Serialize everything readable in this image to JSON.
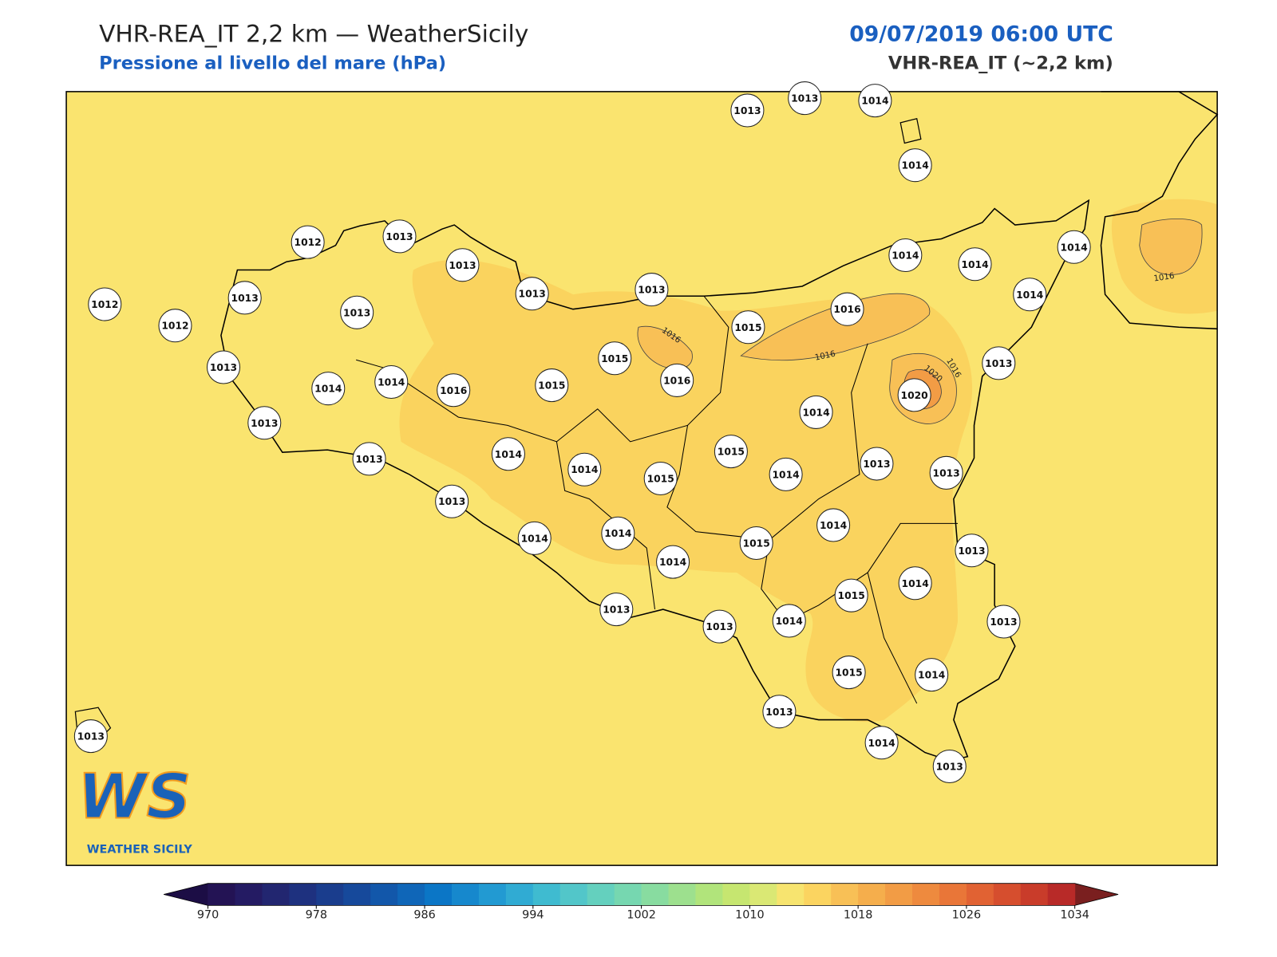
{
  "header": {
    "title": "VHR-REA_IT 2,2 km — WeatherSicily",
    "subtitle": "Pressione al livello del mare (hPa)",
    "datetime": "09/07/2019 06:00 UTC",
    "model": "VHR-REA_IT (~2,2 km)"
  },
  "stations": [
    1013,
    1013,
    1014,
    1014,
    1012,
    1013,
    1013,
    1013,
    1013,
    1012,
    1013,
    1013,
    1012,
    1013,
    1014,
    1014,
    1016,
    1015,
    1015,
    1016,
    1015,
    1016,
    1014,
    1014,
    1014,
    1014,
    1013,
    1020,
    1014,
    1013,
    1013,
    1014,
    1014,
    1015,
    1015,
    1014,
    1013,
    1013,
    1013,
    1014,
    1014,
    1014,
    1015,
    1014,
    1013,
    1014,
    1015,
    1013,
    1013,
    1013,
    1014,
    1015,
    1014,
    1013,
    1014,
    1013,
    1013
  ],
  "contour_labels": [
    1016,
    1016,
    1016,
    1020,
    1016
  ],
  "colorbar": {
    "lim": [
      970,
      1034
    ],
    "ticks": [
      970,
      978,
      986,
      994,
      1002,
      1010,
      1018,
      1026,
      1034
    ],
    "colors": [
      "#231354",
      "#241b63",
      "#222670",
      "#1e317f",
      "#1a3d8d",
      "#16499b",
      "#1257aa",
      "#0f66b8",
      "#0b76c6",
      "#1688cd",
      "#229ad2",
      "#30abd3",
      "#3fbbd0",
      "#52c6c9",
      "#64d0be",
      "#76d7b0",
      "#88dca0",
      "#9de08e",
      "#b1e47b",
      "#c6e670",
      "#dae874",
      "#f7e46f",
      "#fbd460",
      "#f8c056",
      "#f5ae4c",
      "#f29c45",
      "#ee8a3e",
      "#e97638",
      "#e16233",
      "#d64e2e",
      "#c93c2a",
      "#b82a28"
    ],
    "under_color": "#1c0d45",
    "over_color": "#7a1f1f"
  },
  "logo": {
    "mark": "WS",
    "text": "WEATHER SICILY"
  }
}
